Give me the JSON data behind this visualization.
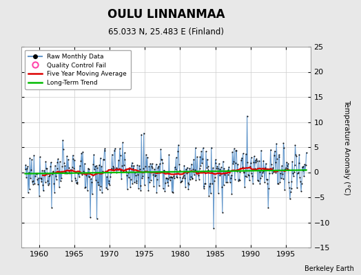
{
  "title": "OULU LINNANMAA",
  "subtitle": "65.033 N, 25.483 E (Finland)",
  "ylabel": "Temperature Anomaly (°C)",
  "credit": "Berkeley Earth",
  "ylim": [
    -15,
    25
  ],
  "yticks": [
    -15,
    -10,
    -5,
    0,
    5,
    10,
    15,
    20,
    25
  ],
  "xlim": [
    1957.5,
    1998.5
  ],
  "xticks": [
    1960,
    1965,
    1970,
    1975,
    1980,
    1985,
    1990,
    1995
  ],
  "fig_bg_color": "#e8e8e8",
  "plot_bg_color": "#ffffff",
  "raw_line_color": "#6699cc",
  "marker_color": "#111111",
  "moving_avg_color": "#dd0000",
  "trend_color": "#00bb00",
  "qc_color": "#ff44aa",
  "grid_color": "#cccccc"
}
